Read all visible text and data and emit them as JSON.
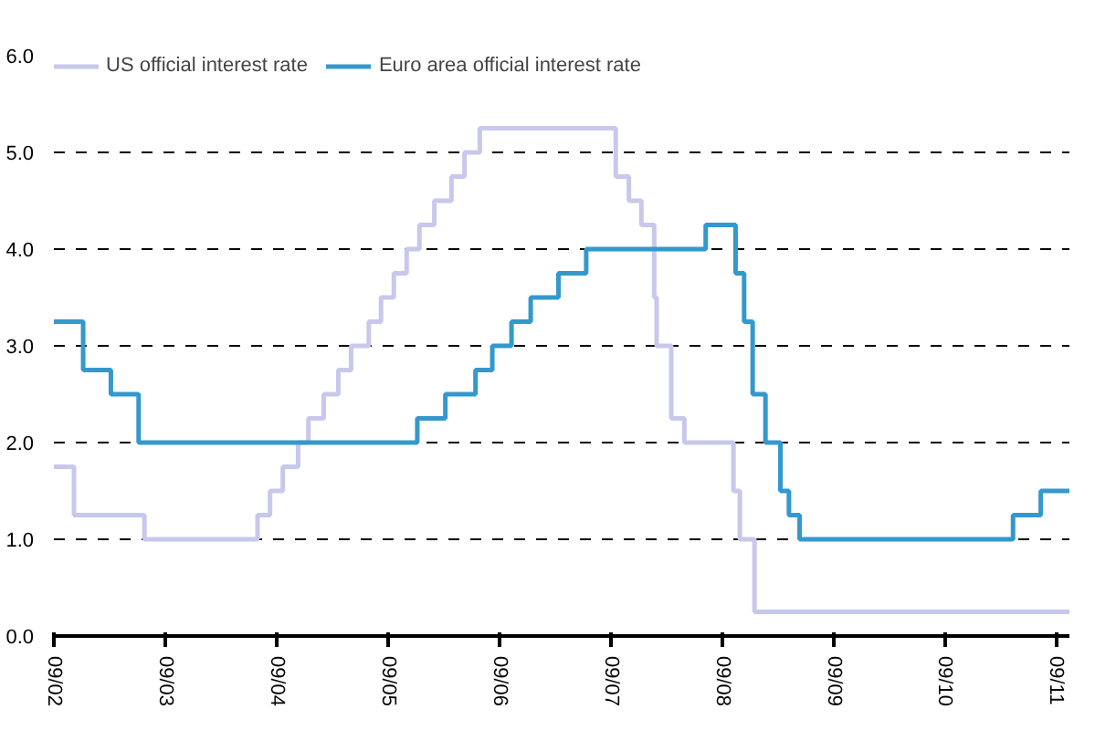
{
  "chart_data": {
    "type": "step",
    "series": [
      {
        "name": "US official interest rate",
        "color": "#c8c8ec",
        "x": [
          "2002-09-01",
          "2002-11-06",
          "2003-06-25",
          "2004-06-30",
          "2004-08-10",
          "2004-09-21",
          "2004-11-10",
          "2004-12-14",
          "2005-02-02",
          "2005-03-22",
          "2005-05-03",
          "2005-06-30",
          "2005-08-09",
          "2005-09-20",
          "2005-11-01",
          "2005-12-13",
          "2006-01-31",
          "2006-03-28",
          "2006-05-10",
          "2006-06-29",
          "2007-09-18",
          "2007-10-31",
          "2007-12-11",
          "2008-01-22",
          "2008-01-30",
          "2008-03-18",
          "2008-04-30",
          "2008-10-08",
          "2008-10-29",
          "2008-12-16",
          "2011-10-15"
        ],
        "values": [
          1.75,
          1.25,
          1.0,
          1.25,
          1.5,
          1.75,
          2.0,
          2.25,
          2.5,
          2.75,
          3.0,
          3.25,
          3.5,
          3.75,
          4.0,
          4.25,
          4.5,
          4.75,
          5.0,
          5.25,
          4.75,
          4.5,
          4.25,
          3.5,
          3.0,
          2.25,
          2.0,
          1.5,
          1.0,
          0.25,
          0.25
        ]
      },
      {
        "name": "Euro area official interest rate",
        "color": "#3399cc",
        "x": [
          "2002-09-01",
          "2002-12-06",
          "2003-03-07",
          "2003-06-06",
          "2005-12-06",
          "2006-03-08",
          "2006-06-15",
          "2006-08-09",
          "2006-10-11",
          "2006-12-13",
          "2007-03-14",
          "2007-06-13",
          "2008-07-09",
          "2008-10-15",
          "2008-11-12",
          "2008-12-10",
          "2009-01-21",
          "2009-03-11",
          "2009-04-08",
          "2009-05-13",
          "2011-04-13",
          "2011-07-13",
          "2011-10-15"
        ],
        "values": [
          3.25,
          2.75,
          2.5,
          2.0,
          2.25,
          2.5,
          2.75,
          3.0,
          3.25,
          3.5,
          3.75,
          4.0,
          4.25,
          3.75,
          3.25,
          2.5,
          2.0,
          1.5,
          1.25,
          1.0,
          1.25,
          1.5,
          1.5
        ]
      }
    ],
    "xlim": [
      "2002-09-01",
      "2011-10-15"
    ],
    "xticks": [
      {
        "value": "2002-09-01",
        "label": "09/02"
      },
      {
        "value": "2003-09-01",
        "label": "09/03"
      },
      {
        "value": "2004-09-01",
        "label": "09/04"
      },
      {
        "value": "2005-09-01",
        "label": "09/05"
      },
      {
        "value": "2006-09-01",
        "label": "09/06"
      },
      {
        "value": "2007-09-01",
        "label": "09/07"
      },
      {
        "value": "2008-09-01",
        "label": "09/08"
      },
      {
        "value": "2009-09-01",
        "label": "09/09"
      },
      {
        "value": "2010-09-01",
        "label": "09/10"
      },
      {
        "value": "2011-09-01",
        "label": "09/11"
      }
    ],
    "ylim": [
      0,
      6
    ],
    "yticks": [
      {
        "value": 0,
        "label": "0.0"
      },
      {
        "value": 1,
        "label": "1.0"
      },
      {
        "value": 2,
        "label": "2.0"
      },
      {
        "value": 3,
        "label": "3.0"
      },
      {
        "value": 4,
        "label": "4.0"
      },
      {
        "value": 5,
        "label": "5.0"
      },
      {
        "value": 6,
        "label": "6.0"
      }
    ],
    "grid": "y",
    "legend": "top",
    "line_style": "solid",
    "marker": "none"
  }
}
